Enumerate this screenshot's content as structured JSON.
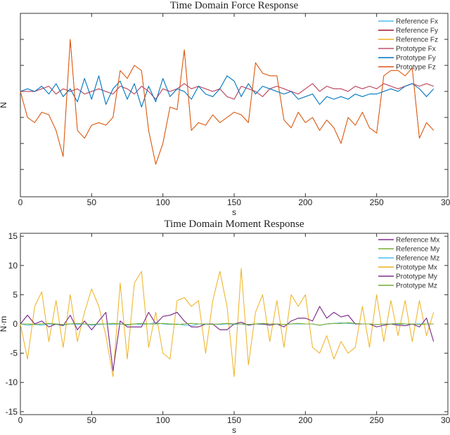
{
  "chart_data": [
    {
      "type": "line",
      "title": "Time Domain Force Response",
      "xlabel": "s",
      "ylabel": "N",
      "xlim": [
        0,
        300
      ],
      "ylim": [
        -4.05,
        3.0
      ],
      "xticks": [
        0,
        50,
        100,
        150,
        200,
        250,
        300
      ],
      "yticks_unlabeled": [
        -3,
        -2,
        -1,
        0,
        1,
        2
      ],
      "legend_position": "top-right",
      "x_step": 5,
      "series": [
        {
          "name": "Reference Fx",
          "color": "#4dbeee",
          "values": [
            0,
            0.1,
            0,
            0.2,
            -0.1,
            0.3,
            -0.2,
            0.1,
            -0.4,
            0.5,
            -0.3,
            0.6,
            -0.5,
            0.1,
            0.4,
            -0.3,
            0.3,
            -0.6,
            0.2,
            -0.4,
            0.5,
            -0.2,
            0.1,
            0,
            -0.3,
            0.2,
            -0.1,
            -0.2,
            0.1,
            0.6,
            0.4,
            -0.2,
            0.3,
            -0.1,
            0.2,
            0.1,
            0,
            -0.1,
            0,
            -0.3,
            -0.2,
            -0.1,
            -0.5,
            -0.2,
            -0.3,
            -0.2,
            -0.3,
            -0.1,
            -0.2,
            -0.1,
            -0.1,
            0,
            0.1,
            0,
            0.2,
            0.3,
            0.1,
            -0.2,
            0.1
          ]
        },
        {
          "name": "Reference Fy",
          "color": "#a2142f",
          "values": [
            0,
            0,
            0,
            0.1,
            0.2,
            -0.1,
            0.1,
            0,
            0.1,
            -0.1,
            0,
            0.1,
            0,
            -0.1,
            0.2,
            0.1,
            -0.1,
            0.2,
            0,
            -0.3,
            0.1,
            0,
            0.1,
            0.3,
            0.1,
            0.2,
            0.1,
            0,
            0.1,
            -0.2,
            -0.3,
            0.2,
            0.1,
            0,
            -0.2,
            0.1,
            0.2,
            0.1,
            0,
            -0.1,
            0.1,
            0.3,
            0,
            0.2,
            0.1,
            0.1,
            0,
            0.2,
            0.1,
            0.2,
            0.1,
            0.3,
            0.2,
            0.1,
            0.2,
            0.3,
            0.2,
            0.3,
            0.2
          ]
        },
        {
          "name": "Reference Fz",
          "color": "#edb120",
          "values": [
            0,
            -1,
            -1.2,
            -0.8,
            -0.9,
            -1.5,
            -2.5,
            2,
            -1.5,
            -1.8,
            -1.3,
            -1.2,
            -1.3,
            -1,
            0.8,
            0.5,
            1,
            0.8,
            -1.5,
            -2.8,
            -2,
            -0.6,
            -0.7,
            1.6,
            -1.5,
            -1.2,
            -1.3,
            -0.9,
            -1.2,
            -1,
            -0.8,
            -0.9,
            -1.2,
            1.1,
            0.7,
            0.6,
            0.6,
            -1.1,
            -1.4,
            -0.8,
            -1.2,
            -1,
            -1.5,
            -1.1,
            -1.4,
            -2,
            -1,
            -1.3,
            -0.8,
            -1.4,
            -1.6,
            0.6,
            0.8,
            0.8,
            0.6,
            0.9,
            -1.8,
            -1.2,
            -1.5
          ]
        },
        {
          "name": "Prototype Fx",
          "color": "#c0506a",
          "values": [
            0,
            0,
            0,
            0.1,
            0.2,
            -0.1,
            0.1,
            0,
            0.1,
            -0.1,
            0,
            0.1,
            0,
            -0.1,
            0.2,
            0.1,
            -0.1,
            0.2,
            0,
            -0.3,
            0.1,
            0,
            0.1,
            0.3,
            0.1,
            0.2,
            0.1,
            0,
            0.1,
            -0.2,
            -0.3,
            0.2,
            0.1,
            0,
            -0.2,
            0.1,
            0.2,
            0.1,
            0,
            -0.1,
            0.1,
            0.3,
            0,
            0.2,
            0.1,
            0.1,
            0,
            0.2,
            0.1,
            0.2,
            0.1,
            0.3,
            0.2,
            0.1,
            0.2,
            0.3,
            0.2,
            0.3,
            0.2
          ]
        },
        {
          "name": "Prototype Fy",
          "color": "#0072bd",
          "values": [
            0,
            0.1,
            0,
            0.2,
            -0.1,
            0.3,
            -0.2,
            0.1,
            -0.4,
            0.5,
            -0.3,
            0.6,
            -0.5,
            0.1,
            0.4,
            -0.3,
            0.3,
            -0.6,
            0.2,
            -0.4,
            0.5,
            -0.2,
            0.1,
            0,
            -0.3,
            0.2,
            -0.1,
            -0.2,
            0.1,
            0.6,
            0.4,
            -0.2,
            0.3,
            -0.1,
            0.2,
            0.1,
            0,
            -0.1,
            0,
            -0.3,
            -0.2,
            -0.1,
            -0.5,
            -0.2,
            -0.3,
            -0.2,
            -0.3,
            -0.1,
            -0.2,
            -0.1,
            -0.1,
            0,
            0.1,
            0,
            0.2,
            0.3,
            0.1,
            -0.2,
            0.1
          ]
        },
        {
          "name": "Prototype Fz",
          "color": "#d95319",
          "values": [
            0,
            -1,
            -1.2,
            -0.8,
            -0.9,
            -1.5,
            -2.5,
            2,
            -1.5,
            -1.8,
            -1.3,
            -1.2,
            -1.3,
            -1,
            0.8,
            0.5,
            1,
            0.8,
            -1.5,
            -2.8,
            -2,
            -0.6,
            -0.7,
            1.6,
            -1.5,
            -1.2,
            -1.3,
            -0.9,
            -1.2,
            -1,
            -0.8,
            -0.9,
            -1.2,
            1.1,
            0.7,
            0.6,
            0.6,
            -1.1,
            -1.4,
            -0.8,
            -1.2,
            -1,
            -1.5,
            -1.1,
            -1.4,
            -2,
            -1,
            -1.3,
            -0.8,
            -1.4,
            -1.6,
            0.6,
            0.8,
            0.8,
            0.6,
            0.9,
            -1.8,
            -1.2,
            -1.5
          ]
        }
      ]
    },
    {
      "type": "line",
      "title": "Time Domain Moment Response",
      "xlabel": "s",
      "ylabel": "N·m",
      "xlim": [
        0,
        300
      ],
      "ylim": [
        -15.5,
        15.5
      ],
      "xticks": [
        0,
        50,
        100,
        150,
        200,
        250,
        300
      ],
      "yticks": [
        -15,
        -10,
        -5,
        0,
        5,
        10,
        15
      ],
      "legend_position": "top-right",
      "x_step": 5,
      "series": [
        {
          "name": "Reference Mx",
          "color": "#7e2f8e",
          "values": [
            0,
            1.5,
            0,
            0.5,
            -0.5,
            0,
            -0.3,
            1.5,
            -1,
            0.5,
            -1,
            0.5,
            2,
            -8,
            0.5,
            -0.5,
            -0.5,
            -0.5,
            2,
            0,
            1.3,
            1.5,
            2,
            0.5,
            -0.5,
            -0.5,
            0,
            0,
            -1,
            -1,
            0,
            0.3,
            -0.2,
            0,
            0,
            -0.2,
            0,
            -0.5,
            0.5,
            1,
            1,
            0.5,
            3,
            1,
            2,
            1.2,
            1.5,
            0,
            0,
            0,
            -0.5,
            -0.2,
            0,
            -0.2,
            -0.3,
            0,
            -0.5,
            1,
            -3
          ]
        },
        {
          "name": "Reference My",
          "color": "#77ac30",
          "values": [
            0,
            0,
            -0.1,
            0,
            0.1,
            0,
            -0.1,
            0,
            0.1,
            0,
            -0.1,
            0,
            0,
            0.1,
            0,
            -0.1,
            0,
            0.1,
            0,
            0,
            0.1,
            0,
            -0.1,
            0,
            0.1,
            0,
            0,
            -0.1,
            0,
            0.1,
            0,
            0,
            -0.1,
            0,
            0.1,
            0,
            0,
            -0.1,
            0,
            0.1,
            0,
            0,
            -0.2,
            0,
            0.1,
            0.1,
            0.2,
            0.1,
            0,
            0,
            -0.1,
            0,
            0,
            0.1,
            0,
            0,
            -0.1,
            0,
            0
          ]
        },
        {
          "name": "Reference Mz",
          "color": "#4dbeee",
          "values": [
            0,
            -0.2,
            -0.1,
            -0.2,
            0,
            -0.1,
            -0.2,
            0,
            -0.1,
            0,
            -0.2,
            -0.1,
            0,
            -0.1,
            0,
            -0.2,
            0,
            -0.1,
            0,
            0.2,
            0,
            -0.1,
            0,
            -0.2,
            -0.3,
            0,
            -0.1,
            0,
            -0.1,
            0,
            -0.1,
            0,
            -0.2,
            0,
            -0.1,
            0,
            0,
            -0.1,
            0,
            0,
            0,
            0,
            -0.2,
            0,
            0.1,
            0.2,
            0.1,
            0,
            0,
            0,
            -0.1,
            0,
            0,
            -0.1,
            0,
            0,
            0,
            0,
            0
          ]
        },
        {
          "name": "Prototype Mx",
          "color": "#edb120",
          "values": [
            0,
            -6,
            3,
            5.5,
            -3,
            4,
            -4,
            5,
            -3,
            2,
            6,
            3,
            -2,
            -9,
            7,
            -6,
            7,
            9,
            -4,
            2,
            -5,
            -6,
            4,
            4.5,
            3,
            4,
            -5,
            4,
            9,
            3,
            -9,
            9.5,
            -7,
            2,
            5,
            -3,
            4,
            -4,
            5,
            3,
            5,
            -4,
            -5,
            -2,
            -6,
            -3,
            -5,
            -4,
            3,
            -4,
            5,
            -3,
            4,
            -2,
            4,
            -3,
            4,
            -2,
            2
          ]
        },
        {
          "name": "Prototype My",
          "color": "#7e2f8e",
          "values": [
            0,
            1.5,
            0,
            0.5,
            -0.5,
            0,
            -0.3,
            1.5,
            -1,
            0.5,
            -1,
            0.5,
            2,
            -8,
            0.5,
            -0.5,
            -0.5,
            -0.5,
            2,
            0,
            1.3,
            1.5,
            2,
            0.5,
            -0.5,
            -0.5,
            0,
            0,
            -1,
            -1,
            0,
            0.3,
            -0.2,
            0,
            0,
            -0.2,
            0,
            -0.5,
            0.5,
            1,
            1,
            0.5,
            3,
            1,
            2,
            1.2,
            1.5,
            0,
            0,
            0,
            -0.5,
            -0.2,
            0,
            -0.2,
            -0.3,
            0,
            -0.5,
            1,
            -3
          ]
        },
        {
          "name": "Prototype Mz",
          "color": "#77ac30",
          "values": [
            0,
            0,
            -0.1,
            0,
            0.1,
            0,
            -0.1,
            0,
            0.1,
            0,
            -0.1,
            0,
            0,
            0.1,
            0,
            -0.1,
            0,
            0.1,
            0,
            0,
            0.1,
            0,
            -0.1,
            0,
            0.1,
            0,
            0,
            -0.1,
            0,
            0.1,
            0,
            0,
            -0.1,
            0,
            0.1,
            0,
            0,
            -0.1,
            0,
            0.1,
            0,
            0,
            -0.2,
            0,
            0.1,
            0.1,
            0.2,
            0.1,
            0,
            0,
            -0.1,
            0,
            0,
            0.1,
            0,
            0,
            -0.1,
            0,
            0
          ]
        }
      ]
    }
  ]
}
